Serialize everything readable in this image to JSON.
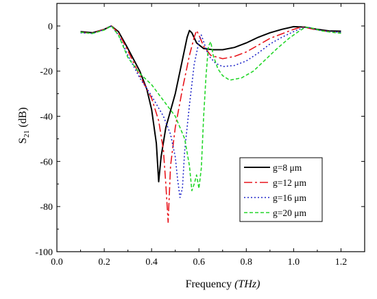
{
  "chart_data": {
    "type": "line",
    "xlabel_main": "Frequency ",
    "xlabel_unit": "(THz)",
    "ylabel_base": "S",
    "ylabel_sub": "21",
    "ylabel_unit": " (dB)",
    "xlim": [
      0.0,
      1.3
    ],
    "ylim": [
      -100,
      10
    ],
    "xticks": [
      0.0,
      0.2,
      0.4,
      0.6,
      0.8,
      1.0,
      1.2
    ],
    "xtick_labels": [
      "0.0",
      "0.2",
      "0.4",
      "0.6",
      "0.8",
      "1.0",
      "1.2"
    ],
    "yticks": [
      0,
      -20,
      -40,
      -60,
      -80,
      -100
    ],
    "ytick_labels": [
      "0",
      "-20",
      "-40",
      "-60",
      "-80",
      "-100"
    ],
    "grid": false,
    "legend_position": "inside lower-right",
    "series": [
      {
        "name": "g=8 μm",
        "color": "#000000",
        "dash": "solid",
        "points": [
          [
            0.1,
            -2.5
          ],
          [
            0.15,
            -3.0
          ],
          [
            0.2,
            -1.5
          ],
          [
            0.23,
            0.0
          ],
          [
            0.26,
            -2.5
          ],
          [
            0.3,
            -10
          ],
          [
            0.35,
            -20
          ],
          [
            0.38,
            -28
          ],
          [
            0.4,
            -37
          ],
          [
            0.42,
            -52
          ],
          [
            0.43,
            -69
          ],
          [
            0.44,
            -58
          ],
          [
            0.46,
            -45
          ],
          [
            0.5,
            -30
          ],
          [
            0.53,
            -15
          ],
          [
            0.55,
            -5
          ],
          [
            0.56,
            -2
          ],
          [
            0.57,
            -3
          ],
          [
            0.59,
            -7.5
          ],
          [
            0.62,
            -10
          ],
          [
            0.66,
            -10.5
          ],
          [
            0.7,
            -10.5
          ],
          [
            0.75,
            -9.5
          ],
          [
            0.8,
            -7.5
          ],
          [
            0.85,
            -5
          ],
          [
            0.9,
            -3
          ],
          [
            0.95,
            -1.5
          ],
          [
            1.0,
            -0.3
          ],
          [
            1.05,
            -0.5
          ],
          [
            1.1,
            -1.5
          ],
          [
            1.15,
            -2.2
          ],
          [
            1.2,
            -2.3
          ]
        ]
      },
      {
        "name": "g=12 μm",
        "color": "#e8141b",
        "dash": "12,4,3,4",
        "points": [
          [
            0.1,
            -2.8
          ],
          [
            0.15,
            -3.2
          ],
          [
            0.2,
            -1.5
          ],
          [
            0.23,
            0.0
          ],
          [
            0.26,
            -3
          ],
          [
            0.3,
            -11
          ],
          [
            0.35,
            -22
          ],
          [
            0.4,
            -32
          ],
          [
            0.43,
            -42
          ],
          [
            0.45,
            -55
          ],
          [
            0.46,
            -70
          ],
          [
            0.47,
            -87
          ],
          [
            0.48,
            -62
          ],
          [
            0.5,
            -45
          ],
          [
            0.53,
            -28
          ],
          [
            0.56,
            -13
          ],
          [
            0.58,
            -5
          ],
          [
            0.59,
            -2
          ],
          [
            0.6,
            -4
          ],
          [
            0.62,
            -9
          ],
          [
            0.65,
            -13
          ],
          [
            0.7,
            -14.5
          ],
          [
            0.75,
            -13.5
          ],
          [
            0.8,
            -11.5
          ],
          [
            0.85,
            -8.5
          ],
          [
            0.9,
            -5.5
          ],
          [
            0.95,
            -3.5
          ],
          [
            1.0,
            -1.5
          ],
          [
            1.03,
            -0.5
          ],
          [
            1.05,
            -0.7
          ],
          [
            1.1,
            -1.8
          ],
          [
            1.15,
            -2.5
          ],
          [
            1.2,
            -3.0
          ]
        ]
      },
      {
        "name": "g=16 μm",
        "color": "#1f25c9",
        "dash": "2,3",
        "points": [
          [
            0.1,
            -3.0
          ],
          [
            0.15,
            -3.3
          ],
          [
            0.2,
            -1.6
          ],
          [
            0.23,
            0.0
          ],
          [
            0.26,
            -4
          ],
          [
            0.3,
            -13
          ],
          [
            0.35,
            -23
          ],
          [
            0.4,
            -31
          ],
          [
            0.45,
            -40
          ],
          [
            0.48,
            -48
          ],
          [
            0.5,
            -58
          ],
          [
            0.51,
            -68
          ],
          [
            0.52,
            -76
          ],
          [
            0.53,
            -72
          ],
          [
            0.54,
            -55
          ],
          [
            0.56,
            -35
          ],
          [
            0.58,
            -17
          ],
          [
            0.6,
            -7
          ],
          [
            0.61,
            -4
          ],
          [
            0.62,
            -7
          ],
          [
            0.64,
            -13
          ],
          [
            0.67,
            -16.5
          ],
          [
            0.7,
            -18
          ],
          [
            0.75,
            -17.5
          ],
          [
            0.8,
            -15.5
          ],
          [
            0.85,
            -12
          ],
          [
            0.9,
            -8
          ],
          [
            0.95,
            -5
          ],
          [
            1.0,
            -2.5
          ],
          [
            1.04,
            -0.8
          ],
          [
            1.06,
            -0.5
          ],
          [
            1.1,
            -1.8
          ],
          [
            1.15,
            -2.5
          ],
          [
            1.2,
            -2.8
          ]
        ]
      },
      {
        "name": "g=20 μm",
        "color": "#22d628",
        "dash": "5,3",
        "points": [
          [
            0.1,
            -2.8
          ],
          [
            0.15,
            -3.3
          ],
          [
            0.2,
            -1.8
          ],
          [
            0.23,
            0.0
          ],
          [
            0.26,
            -4
          ],
          [
            0.3,
            -14
          ],
          [
            0.35,
            -21
          ],
          [
            0.4,
            -26
          ],
          [
            0.45,
            -33
          ],
          [
            0.5,
            -40
          ],
          [
            0.54,
            -50
          ],
          [
            0.56,
            -62
          ],
          [
            0.57,
            -73
          ],
          [
            0.58,
            -70
          ],
          [
            0.59,
            -66
          ],
          [
            0.6,
            -72
          ],
          [
            0.61,
            -63
          ],
          [
            0.62,
            -40
          ],
          [
            0.63,
            -22
          ],
          [
            0.64,
            -9
          ],
          [
            0.65,
            -7
          ],
          [
            0.66,
            -13
          ],
          [
            0.68,
            -19
          ],
          [
            0.7,
            -22
          ],
          [
            0.73,
            -24
          ],
          [
            0.78,
            -23
          ],
          [
            0.83,
            -20
          ],
          [
            0.88,
            -15
          ],
          [
            0.93,
            -10
          ],
          [
            0.98,
            -5.5
          ],
          [
            1.02,
            -2.5
          ],
          [
            1.05,
            -0.5
          ],
          [
            1.08,
            -1
          ],
          [
            1.12,
            -2.2
          ],
          [
            1.16,
            -2.8
          ],
          [
            1.2,
            -3.2
          ]
        ]
      }
    ]
  }
}
